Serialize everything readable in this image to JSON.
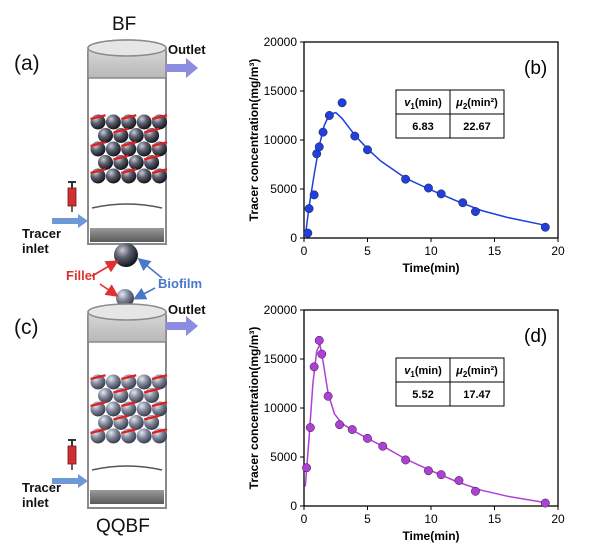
{
  "left": {
    "panel_a_label": "(a)",
    "panel_c_label": "(c)",
    "reactor_top": {
      "title": "BF",
      "outlet_label": "Outlet",
      "inlet_line1": "Tracer",
      "inlet_line2": "inlet"
    },
    "reactor_bottom": {
      "title": "QQBF",
      "outlet_label": "Outlet",
      "inlet_line1": "Tracer",
      "inlet_line2": "inlet"
    },
    "legend": {
      "filler_label": "Filler",
      "biofilm_label": "Biofilm"
    },
    "colors": {
      "filler": "#e03030",
      "biofilm": "#4a78c8",
      "arrow": "#8c8ce0",
      "inlet_arrow": "#6f98d6"
    }
  },
  "chart_data": [
    {
      "type": "scatter",
      "panel_label": "(b)",
      "xlabel": "Time(min)",
      "ylabel": "Tracer concentration(mg/m³)",
      "xlim": [
        0,
        20
      ],
      "ylim": [
        0,
        20000
      ],
      "x_ticks": [
        "0",
        "5",
        "10",
        "15",
        "20"
      ],
      "y_ticks": [
        "0",
        "5000",
        "10000",
        "15000",
        "20000"
      ],
      "color": "#1f3fe0",
      "points": [
        {
          "x": 0.3,
          "y": 500
        },
        {
          "x": 0.4,
          "y": 3000
        },
        {
          "x": 0.8,
          "y": 4400
        },
        {
          "x": 1.0,
          "y": 8600
        },
        {
          "x": 1.2,
          "y": 9300
        },
        {
          "x": 1.5,
          "y": 10800
        },
        {
          "x": 2.0,
          "y": 12500
        },
        {
          "x": 3.0,
          "y": 13800
        },
        {
          "x": 4.0,
          "y": 10400
        },
        {
          "x": 5.0,
          "y": 9000
        },
        {
          "x": 8.0,
          "y": 6000
        },
        {
          "x": 9.8,
          "y": 5100
        },
        {
          "x": 10.8,
          "y": 4500
        },
        {
          "x": 12.5,
          "y": 3600
        },
        {
          "x": 13.5,
          "y": 2700
        },
        {
          "x": 19.0,
          "y": 1100
        }
      ],
      "fit": [
        {
          "x": 0.1,
          "y": 200
        },
        {
          "x": 0.4,
          "y": 3200
        },
        {
          "x": 0.8,
          "y": 6500
        },
        {
          "x": 1.2,
          "y": 9400
        },
        {
          "x": 1.6,
          "y": 11500
        },
        {
          "x": 2.0,
          "y": 12600
        },
        {
          "x": 2.5,
          "y": 12800
        },
        {
          "x": 3.0,
          "y": 12200
        },
        {
          "x": 4.0,
          "y": 10500
        },
        {
          "x": 5.0,
          "y": 9100
        },
        {
          "x": 6.0,
          "y": 7900
        },
        {
          "x": 8.0,
          "y": 6100
        },
        {
          "x": 10.0,
          "y": 4900
        },
        {
          "x": 12.0,
          "y": 3800
        },
        {
          "x": 14.0,
          "y": 2800
        },
        {
          "x": 16.0,
          "y": 2100
        },
        {
          "x": 19.0,
          "y": 1300
        }
      ],
      "table": {
        "h1_sym": "v",
        "h1_sub": "1",
        "h1_unit": "(min)",
        "h2_sym": "μ",
        "h2_sub": "2",
        "h2_unit": "(min²)",
        "v1": "6.83",
        "v2": "22.67"
      }
    },
    {
      "type": "scatter",
      "panel_label": "(d)",
      "xlabel": "Time(min)",
      "ylabel": "Tracer concentration(mg/m³)",
      "xlim": [
        0,
        20
      ],
      "ylim": [
        0,
        20000
      ],
      "x_ticks": [
        "0",
        "5",
        "10",
        "15",
        "20"
      ],
      "y_ticks": [
        "0",
        "5000",
        "10000",
        "15000",
        "20000"
      ],
      "color": "#b03fd8",
      "points": [
        {
          "x": 0.2,
          "y": 3900
        },
        {
          "x": 0.5,
          "y": 8000
        },
        {
          "x": 0.8,
          "y": 14200
        },
        {
          "x": 1.2,
          "y": 16900
        },
        {
          "x": 1.4,
          "y": 15500
        },
        {
          "x": 1.9,
          "y": 11200
        },
        {
          "x": 2.8,
          "y": 8300
        },
        {
          "x": 3.8,
          "y": 7800
        },
        {
          "x": 5.0,
          "y": 6900
        },
        {
          "x": 6.2,
          "y": 6100
        },
        {
          "x": 8.0,
          "y": 4700
        },
        {
          "x": 9.8,
          "y": 3600
        },
        {
          "x": 10.8,
          "y": 3200
        },
        {
          "x": 12.2,
          "y": 2600
        },
        {
          "x": 13.5,
          "y": 1500
        },
        {
          "x": 19.0,
          "y": 300
        }
      ],
      "fit": [
        {
          "x": 0.1,
          "y": 2000
        },
        {
          "x": 0.4,
          "y": 7000
        },
        {
          "x": 0.7,
          "y": 12500
        },
        {
          "x": 1.0,
          "y": 15800
        },
        {
          "x": 1.25,
          "y": 16500
        },
        {
          "x": 1.5,
          "y": 14800
        },
        {
          "x": 1.9,
          "y": 11500
        },
        {
          "x": 2.4,
          "y": 9400
        },
        {
          "x": 3.0,
          "y": 8400
        },
        {
          "x": 4.0,
          "y": 7600
        },
        {
          "x": 5.0,
          "y": 6900
        },
        {
          "x": 6.5,
          "y": 5900
        },
        {
          "x": 8.0,
          "y": 4800
        },
        {
          "x": 10.0,
          "y": 3600
        },
        {
          "x": 12.0,
          "y": 2500
        },
        {
          "x": 14.0,
          "y": 1600
        },
        {
          "x": 16.0,
          "y": 1000
        },
        {
          "x": 19.0,
          "y": 350
        }
      ],
      "table": {
        "h1_sym": "v",
        "h1_sub": "1",
        "h1_unit": "(min)",
        "h2_sym": "μ",
        "h2_sub": "2",
        "h2_unit": "(min²)",
        "v1": "5.52",
        "v2": "17.47"
      }
    }
  ]
}
